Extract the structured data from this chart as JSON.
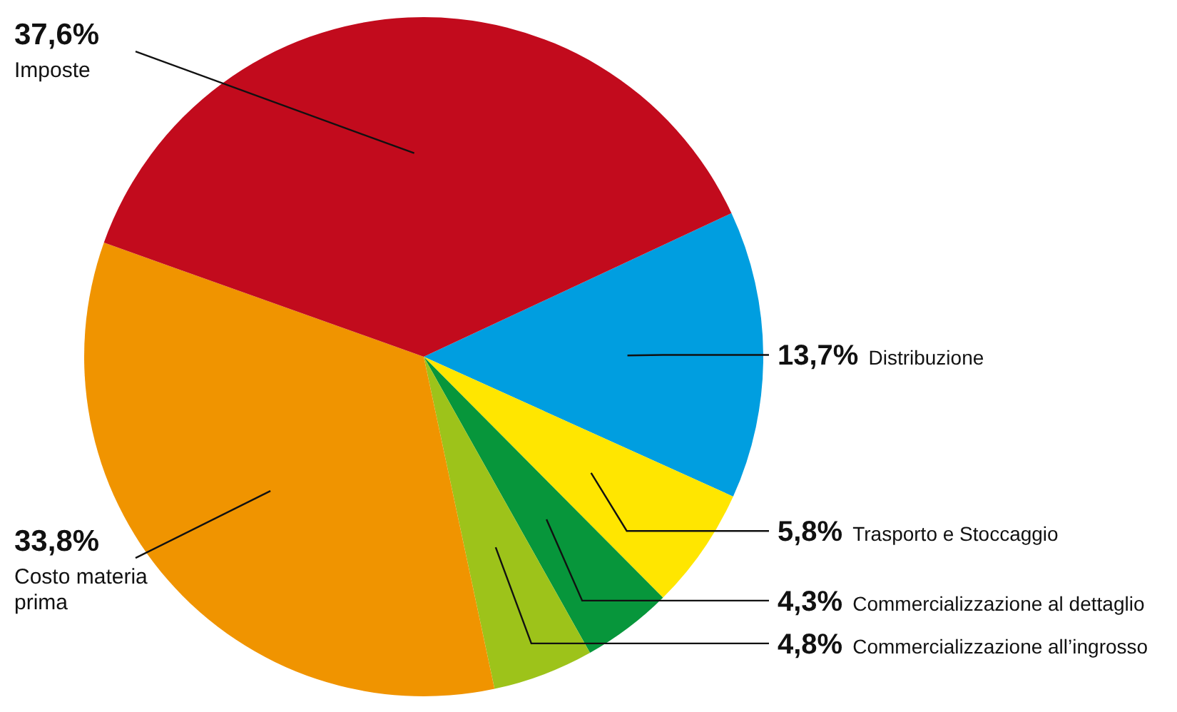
{
  "chart_data": {
    "type": "pie",
    "categories": [
      "Distribuzione",
      "Trasporto e Stoccaggio",
      "Commercializzazione al dettaglio",
      "Commercializzazione all’ingrosso",
      "Costo materia prima",
      "Imposte"
    ],
    "values": [
      13.7,
      5.8,
      4.3,
      4.8,
      33.8,
      37.6
    ],
    "value_labels": [
      "13,7%",
      "5,8%",
      "4,3%",
      "4,8%",
      "33,8%",
      "37,6%"
    ],
    "colors": [
      "#009ee0",
      "#ffe600",
      "#07963b",
      "#9dc31a",
      "#f09400",
      "#c20b1d"
    ]
  }
}
